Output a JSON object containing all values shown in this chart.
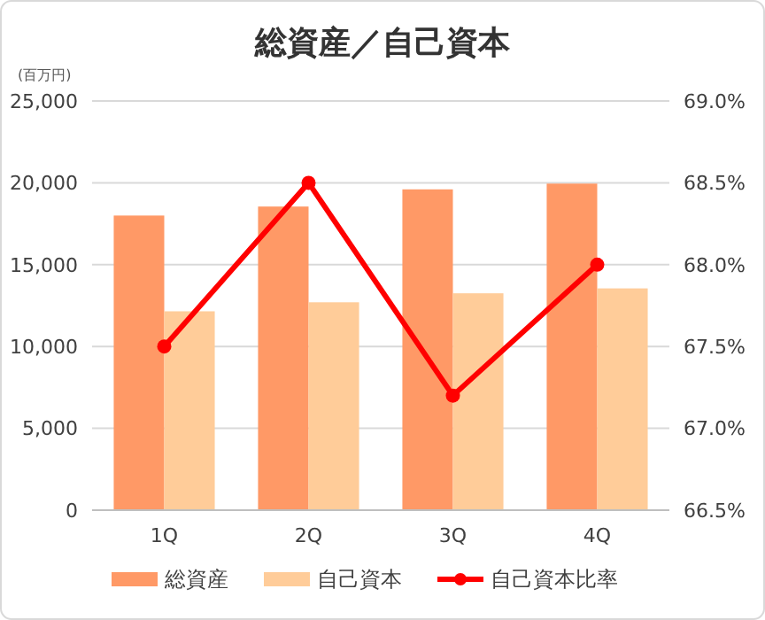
{
  "chart_data": {
    "type": "bar",
    "title": "総資産／自己資本",
    "ylabel": "(百万円)",
    "categories": [
      "1Q",
      "2Q",
      "3Q",
      "4Q"
    ],
    "series": [
      {
        "name": "総資産",
        "color": "#ff9966",
        "values": [
          18000,
          18550,
          19600,
          19950
        ]
      },
      {
        "name": "自己資本",
        "color": "#ffcc99",
        "values": [
          12150,
          12700,
          13250,
          13550
        ]
      },
      {
        "name": "自己資本比率",
        "type": "line",
        "axis": "y2",
        "color": "#ff0000",
        "marker": "circle",
        "values": [
          67.5,
          68.5,
          67.2,
          68.0
        ]
      }
    ],
    "ylim": [
      0,
      25000
    ],
    "yticks": [
      0,
      {
        "value": 5000,
        "label": "5,000"
      },
      {
        "value": 10000,
        "label": "10,000"
      },
      {
        "value": 15000,
        "label": "15,000"
      },
      {
        "value": 20000,
        "label": "20,000"
      },
      {
        "value": 25000,
        "label": "25,000"
      }
    ],
    "y2lim": [
      66.5,
      69.0
    ],
    "y2ticks": [
      {
        "value": 66.5,
        "label": "66.5%"
      },
      {
        "value": 67.0,
        "label": "67.0%"
      },
      {
        "value": 67.5,
        "label": "67.5%"
      },
      {
        "value": 68.0,
        "label": "68.0%"
      },
      {
        "value": 68.5,
        "label": "68.5%"
      },
      {
        "value": 69.0,
        "label": "69.0%"
      }
    ],
    "grid": "y",
    "legend": "bottom"
  }
}
